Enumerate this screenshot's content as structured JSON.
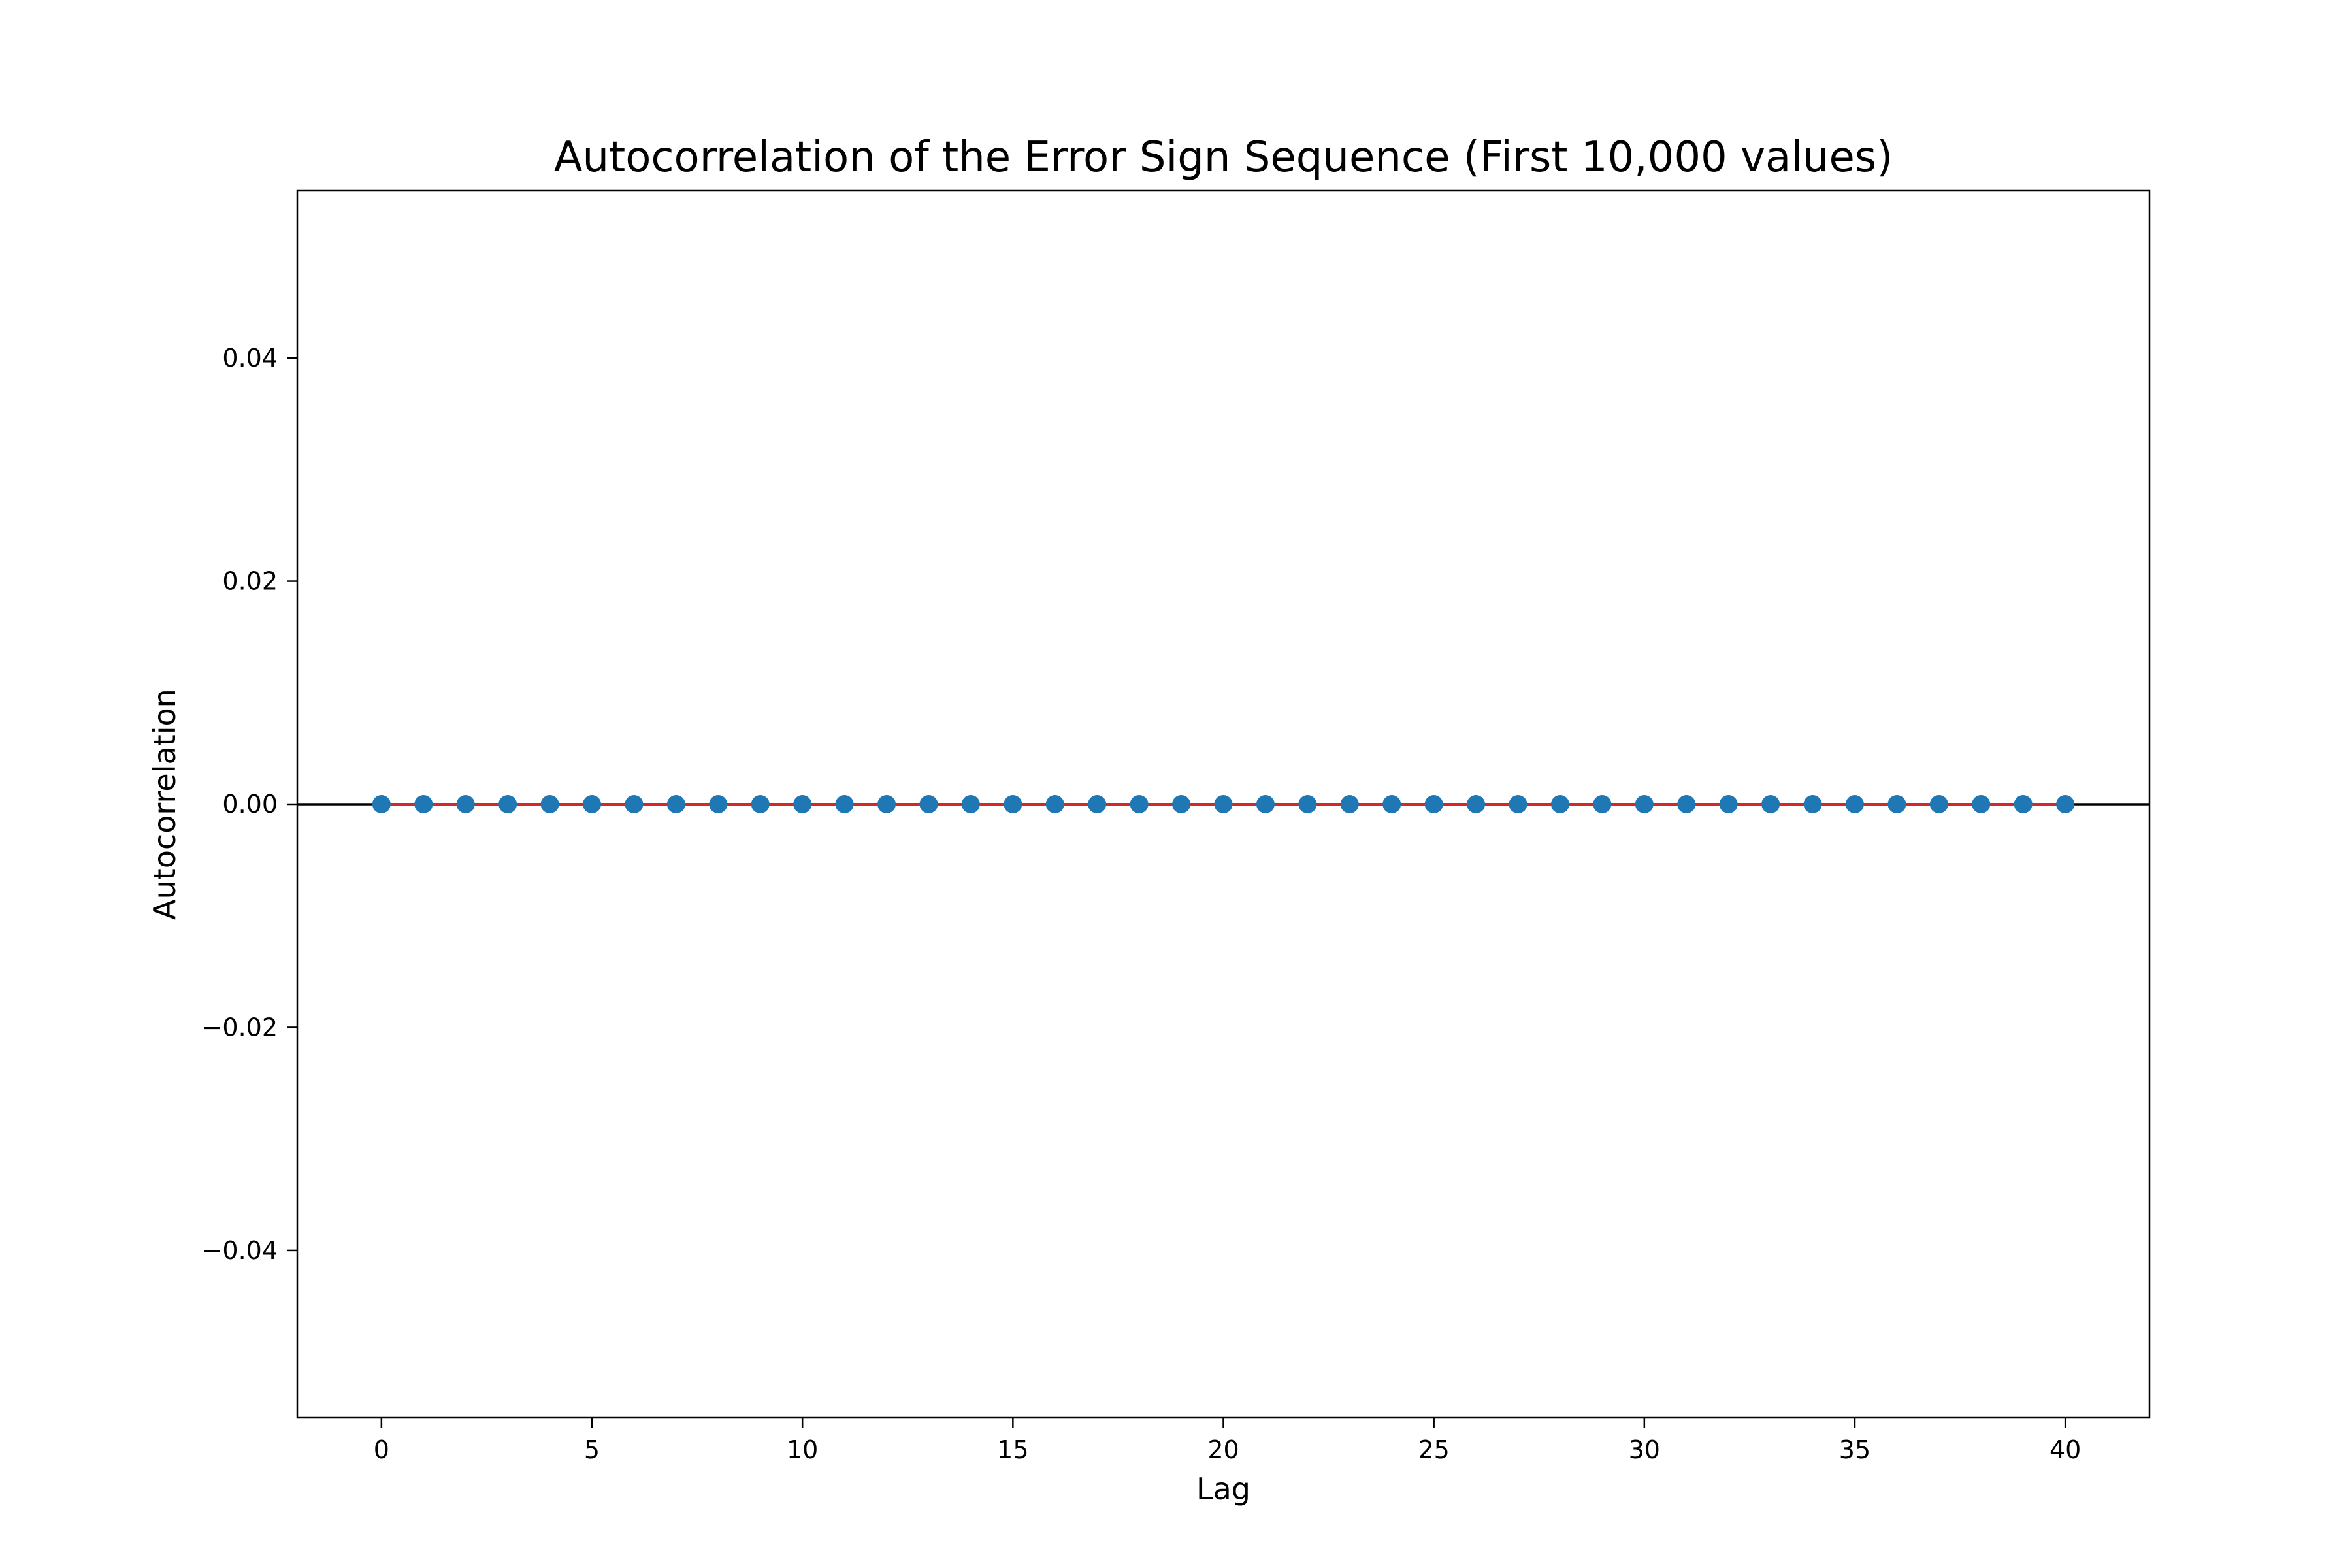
{
  "chart_data": {
    "type": "scatter",
    "title": "Autocorrelation of the Error Sign Sequence (First 10,000 values)",
    "xlabel": "Lag",
    "ylabel": "Autocorrelation",
    "xlim": [
      -2,
      42
    ],
    "ylim": [
      -0.055,
      0.055
    ],
    "xticks": [
      0,
      5,
      10,
      15,
      20,
      25,
      30,
      35,
      40
    ],
    "xtick_labels": [
      "0",
      "5",
      "10",
      "15",
      "20",
      "25",
      "30",
      "35",
      "40"
    ],
    "yticks": [
      -0.04,
      -0.02,
      0.0,
      0.02,
      0.04
    ],
    "ytick_labels": [
      "−0.04",
      "−0.02",
      "0.00",
      "0.02",
      "0.04"
    ],
    "grid": false,
    "reference_line": {
      "y": 0,
      "color": "#000000"
    },
    "series": [
      {
        "style": "stem",
        "marker_color": "#1f77b4",
        "stem_color": "#d62728",
        "x": [
          0,
          1,
          2,
          3,
          4,
          5,
          6,
          7,
          8,
          9,
          10,
          11,
          12,
          13,
          14,
          15,
          16,
          17,
          18,
          19,
          20,
          21,
          22,
          23,
          24,
          25,
          26,
          27,
          28,
          29,
          30,
          31,
          32,
          33,
          34,
          35,
          36,
          37,
          38,
          39,
          40
        ],
        "values": [
          0,
          0,
          0,
          0,
          0,
          0,
          0,
          0,
          0,
          0,
          0,
          0,
          0,
          0,
          0,
          0,
          0,
          0,
          0,
          0,
          0,
          0,
          0,
          0,
          0,
          0,
          0,
          0,
          0,
          0,
          0,
          0,
          0,
          0,
          0,
          0,
          0,
          0,
          0,
          0,
          0
        ]
      }
    ]
  }
}
